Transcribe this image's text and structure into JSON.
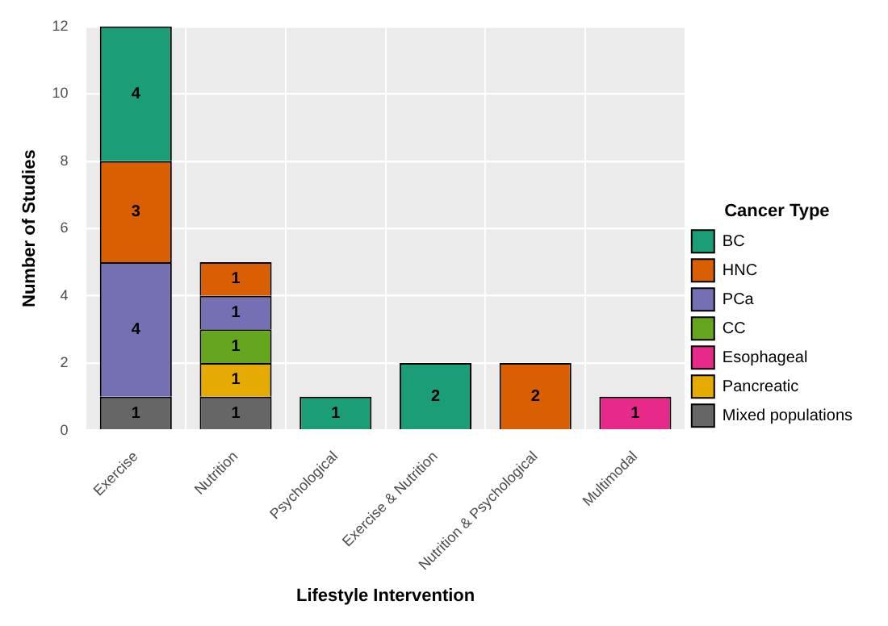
{
  "chart_data": {
    "type": "bar",
    "xlabel": "Lifestyle Intervention",
    "ylabel": "Number of Studies",
    "legend_title": "Cancer Type",
    "categories": [
      "Exercise",
      "Nutrition",
      "Psychological",
      "Exercise & Nutrition",
      "Nutrition & Psychological",
      "Multimodal"
    ],
    "stacked": true,
    "ylim": [
      0,
      12
    ],
    "yticks": [
      0,
      2,
      4,
      6,
      8,
      10,
      12
    ],
    "grid": true,
    "legend": "right",
    "data_labels": true,
    "series": [
      {
        "name": "Mixed populations",
        "color": "#666666",
        "values": [
          1,
          1,
          null,
          null,
          null,
          null
        ]
      },
      {
        "name": "Pancreatic",
        "color": "#e6ab02",
        "values": [
          null,
          1,
          null,
          null,
          null,
          null
        ]
      },
      {
        "name": "Esophageal",
        "color": "#e7298a",
        "values": [
          null,
          null,
          null,
          null,
          null,
          1
        ]
      },
      {
        "name": "CC",
        "color": "#66a61e",
        "values": [
          null,
          1,
          null,
          null,
          null,
          null
        ]
      },
      {
        "name": "PCa",
        "color": "#7570b3",
        "values": [
          4,
          1,
          null,
          null,
          null,
          null
        ]
      },
      {
        "name": "HNC",
        "color": "#d95f02",
        "values": [
          3,
          1,
          null,
          null,
          2,
          null
        ]
      },
      {
        "name": "BC",
        "color": "#1b9e77",
        "values": [
          4,
          null,
          1,
          2,
          null,
          null
        ]
      }
    ]
  }
}
